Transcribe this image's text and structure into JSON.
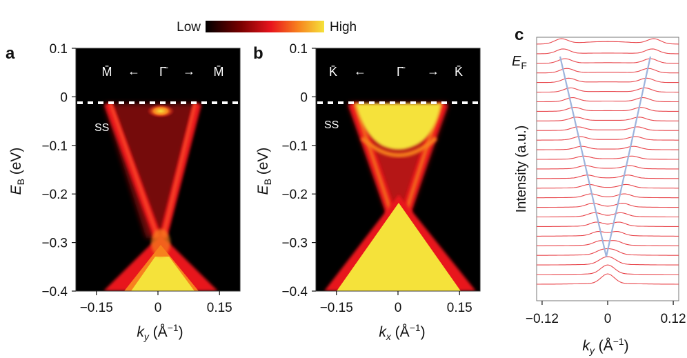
{
  "colorbar": {
    "low_label": "Low",
    "high_label": "High",
    "colors": [
      "#000000",
      "#7a0000",
      "#e8141c",
      "#f7821e",
      "#f5e23a"
    ]
  },
  "panels": {
    "a": {
      "letter": "a",
      "direction": {
        "left": "M̄",
        "center": "Γ̄",
        "right": "M̄",
        "arrow_left": "←",
        "arrow_right": "→"
      },
      "ss_label": "SS",
      "ylabel_main": "E",
      "ylabel_sub": "B",
      "ylabel_unit": " (eV)",
      "xlabel_main": "k",
      "xlabel_sub": "y",
      "xlabel_unit": " (Å",
      "xlabel_sup": "−1",
      "xlabel_close": ")"
    },
    "b": {
      "letter": "b",
      "direction": {
        "left": "K̄",
        "center": "Γ̄",
        "right": "K̄",
        "arrow_left": "←",
        "arrow_right": "→"
      },
      "ss_label": "SS",
      "ylabel_main": "E",
      "ylabel_sub": "B",
      "ylabel_unit": " (eV)",
      "xlabel_main": "k",
      "xlabel_sub": "x",
      "xlabel_unit": " (Å",
      "xlabel_sup": "−1",
      "xlabel_close": ")"
    },
    "c": {
      "letter": "c",
      "fermi_main": "E",
      "fermi_sub": "F",
      "ylabel": "Intensity (a.u.)",
      "xlabel_main": "k",
      "xlabel_sub": "y",
      "xlabel_unit": " (Å",
      "xlabel_sup": "−1",
      "xlabel_close": ")"
    }
  },
  "chart_data": [
    {
      "type": "heatmap",
      "panel": "a",
      "description_kind": "ARPES band map",
      "xlim": [
        -0.2,
        0.2
      ],
      "ylim": [
        -0.4,
        0.1
      ],
      "xticks": [
        -0.15,
        0,
        0.15
      ],
      "xtick_labels": [
        "−0.15",
        "0",
        "0.15"
      ],
      "yticks": [
        0.1,
        0,
        -0.1,
        -0.2,
        -0.3,
        -0.4
      ],
      "ytick_labels": [
        "0.1",
        "0",
        "−0.1",
        "−0.2",
        "−0.3",
        "−0.4"
      ],
      "fermi_level": 0,
      "dirac_point": {
        "k": 0,
        "E": -0.3
      },
      "surface_state_k_at_EF": [
        -0.085,
        0.085
      ],
      "bulk_valence_top": -0.3
    },
    {
      "type": "heatmap",
      "panel": "b",
      "description_kind": "ARPES band map",
      "xlim": [
        -0.2,
        0.2
      ],
      "ylim": [
        -0.4,
        0.1
      ],
      "xticks": [
        -0.15,
        0,
        0.15
      ],
      "xtick_labels": [
        "−0.15",
        "0",
        "0.15"
      ],
      "yticks": [
        0.1,
        0,
        -0.1,
        -0.2,
        -0.3,
        -0.4
      ],
      "ytick_labels": [
        "0.1",
        "0",
        "−0.1",
        "−0.2",
        "−0.3",
        "−0.4"
      ],
      "fermi_level": 0,
      "dirac_point": {
        "k": 0,
        "E": -0.29
      },
      "surface_state_k_at_EF": [
        -0.1,
        0.1
      ],
      "bulk_valence_top": -0.29
    },
    {
      "type": "line",
      "panel": "c",
      "description_kind": "stacked momentum distribution curves",
      "xlim": [
        -0.13,
        0.13
      ],
      "xticks": [
        -0.12,
        0,
        0.12
      ],
      "xtick_labels": [
        "−0.12",
        "0",
        "0.12"
      ],
      "curve_count": 26,
      "peak_positions_k": [
        [
          -0.085,
          0.085
        ],
        [
          0,
          0
        ]
      ],
      "line_color": "#e8454b",
      "guide_color": "#9db4dd"
    }
  ]
}
